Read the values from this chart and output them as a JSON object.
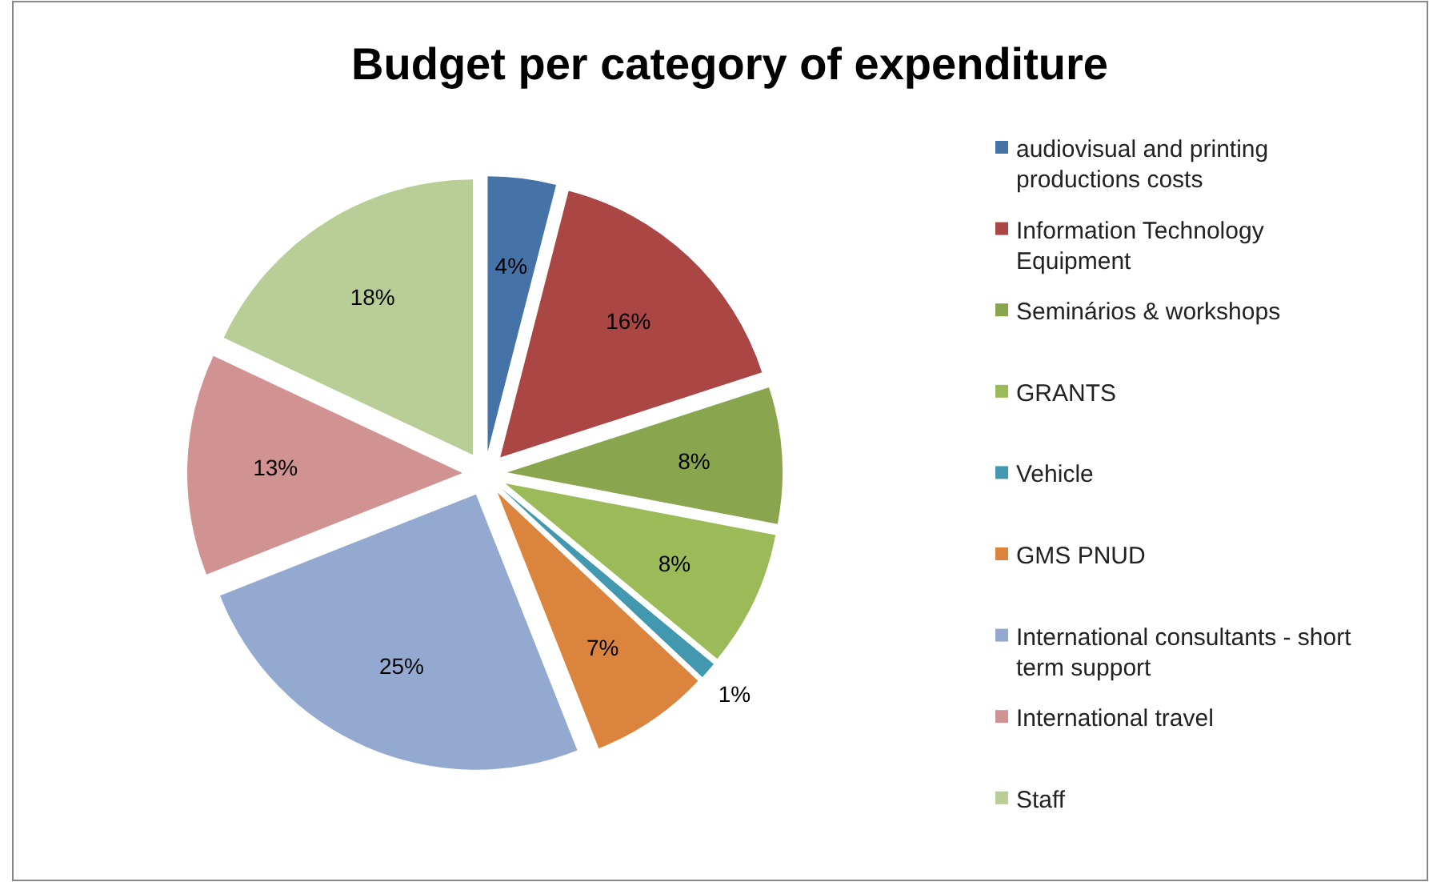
{
  "chart_data": {
    "type": "pie",
    "title": "Budget per category of expenditure",
    "categories": [
      "audiovisual and printing productions costs",
      "Information Technology Equipment",
      "Seminários & workshops",
      "GRANTS",
      "Vehicle",
      "GMS PNUD",
      "International consultants - short term support",
      "International travel",
      "Staff"
    ],
    "values": [
      4,
      16,
      8,
      8,
      1,
      7,
      25,
      13,
      18
    ],
    "value_labels": [
      "4%",
      "16%",
      "8%",
      "8%",
      "1%",
      "7%",
      "25%",
      "13%",
      "18%"
    ],
    "colors": [
      "#4572a7",
      "#aa4643",
      "#89a54e",
      "#9bbb59",
      "#4198af",
      "#db843d",
      "#93a9cf",
      "#d19392",
      "#b9cd96"
    ],
    "legend": "right"
  }
}
